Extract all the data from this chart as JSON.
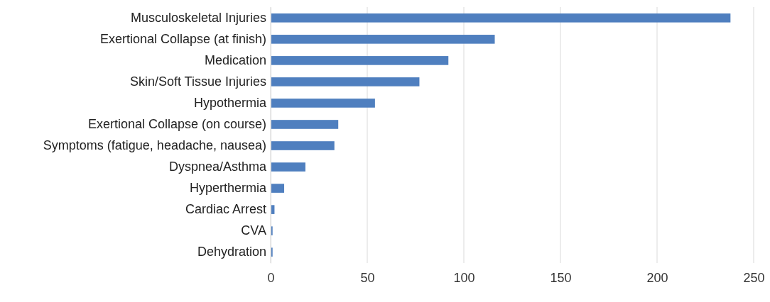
{
  "chart_data": {
    "type": "bar",
    "orientation": "horizontal",
    "categories": [
      "Musculoskeletal Injuries",
      "Exertional Collapse (at finish)",
      "Medication",
      "Skin/Soft Tissue Injuries",
      "Hypothermia",
      "Exertional Collapse (on course)",
      "Symptoms (fatigue, headache, nausea)",
      "Dyspnea/Asthma",
      "Hyperthermia",
      "Cardiac Arrest",
      "CVA",
      "Dehydration"
    ],
    "values": [
      238,
      116,
      92,
      77,
      54,
      35,
      33,
      18,
      7,
      2,
      1,
      1
    ],
    "color": "#4f7fbf",
    "xlim": [
      0,
      250
    ],
    "xticks": [
      0,
      50,
      100,
      150,
      200,
      250
    ],
    "grid": "x"
  }
}
